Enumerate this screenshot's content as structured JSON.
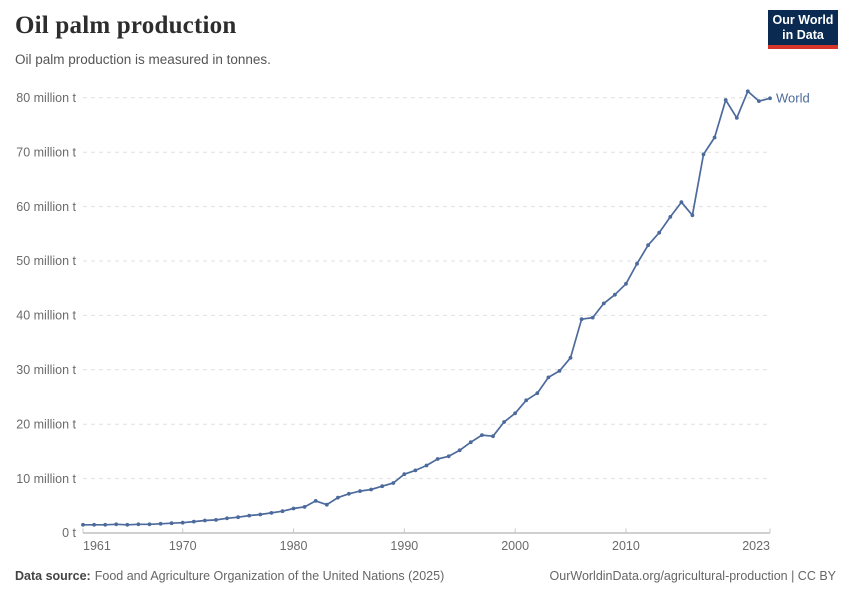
{
  "header": {
    "title": "Oil palm production",
    "subtitle": "Oil palm production is measured in tonnes."
  },
  "logo": {
    "line1": "Our World",
    "line2": "in Data",
    "bg_color": "#0b2a52",
    "bar_color": "#d8352a"
  },
  "chart_data": {
    "type": "line",
    "title": "Oil palm production",
    "unit": "tonnes",
    "grid": "horizontal-dashed",
    "legend_position": "end-of-line-label",
    "xlim": [
      1961,
      2023
    ],
    "ylim": [
      0,
      80
    ],
    "y_unit_display": "million t",
    "y_ticks": [
      {
        "value": 0,
        "label": "0 t"
      },
      {
        "value": 10,
        "label": "10 million t"
      },
      {
        "value": 20,
        "label": "20 million t"
      },
      {
        "value": 30,
        "label": "30 million t"
      },
      {
        "value": 40,
        "label": "40 million t"
      },
      {
        "value": 50,
        "label": "50 million t"
      },
      {
        "value": 60,
        "label": "60 million t"
      },
      {
        "value": 70,
        "label": "70 million t"
      },
      {
        "value": 80,
        "label": "80 million t"
      }
    ],
    "x_ticks": [
      {
        "year": 1961,
        "label": "1961",
        "align": "left"
      },
      {
        "year": 1970,
        "label": "1970",
        "align": "center"
      },
      {
        "year": 1980,
        "label": "1980",
        "align": "center"
      },
      {
        "year": 1990,
        "label": "1990",
        "align": "center"
      },
      {
        "year": 2000,
        "label": "2000",
        "align": "center"
      },
      {
        "year": 2010,
        "label": "2010",
        "align": "center"
      },
      {
        "year": 2023,
        "label": "2023",
        "align": "right"
      }
    ],
    "series": [
      {
        "name": "World",
        "color": "#4C6A9C",
        "values_unit": "million tonnes",
        "x": [
          1961,
          1962,
          1963,
          1964,
          1965,
          1966,
          1967,
          1968,
          1969,
          1970,
          1971,
          1972,
          1973,
          1974,
          1975,
          1976,
          1977,
          1978,
          1979,
          1980,
          1981,
          1982,
          1983,
          1984,
          1985,
          1986,
          1987,
          1988,
          1989,
          1990,
          1991,
          1992,
          1993,
          1994,
          1995,
          1996,
          1997,
          1998,
          1999,
          2000,
          2001,
          2002,
          2003,
          2004,
          2005,
          2006,
          2007,
          2008,
          2009,
          2010,
          2011,
          2012,
          2013,
          2014,
          2015,
          2016,
          2017,
          2018,
          2019,
          2020,
          2021,
          2022,
          2023
        ],
        "y": [
          1.5,
          1.5,
          1.5,
          1.6,
          1.5,
          1.6,
          1.6,
          1.7,
          1.8,
          1.9,
          2.1,
          2.3,
          2.4,
          2.7,
          2.9,
          3.2,
          3.4,
          3.7,
          4.0,
          4.5,
          4.8,
          5.9,
          5.2,
          6.5,
          7.2,
          7.7,
          8.0,
          8.6,
          9.2,
          10.8,
          11.5,
          12.4,
          13.6,
          14.1,
          15.2,
          16.7,
          18.0,
          17.8,
          20.4,
          22.0,
          24.4,
          25.7,
          28.6,
          29.8,
          32.2,
          39.3,
          39.6,
          42.2,
          43.8,
          45.8,
          49.5,
          52.9,
          55.2,
          58.1,
          60.8,
          58.4,
          69.6,
          72.7,
          79.6,
          76.3,
          81.2,
          79.4,
          79.9
        ]
      }
    ],
    "colors": {
      "line": "#4C6A9C",
      "gridline": "#e0e0e0",
      "axis_line": "#a1a1a1",
      "tick_mark": "#c7c7c7",
      "tick_label": "#6b6b6b"
    }
  },
  "footer": {
    "source_label": "Data source:",
    "source_text": "Food and Agriculture Organization of the United Nations (2025)",
    "right_text": "OurWorldinData.org/agricultural-production | CC BY"
  }
}
